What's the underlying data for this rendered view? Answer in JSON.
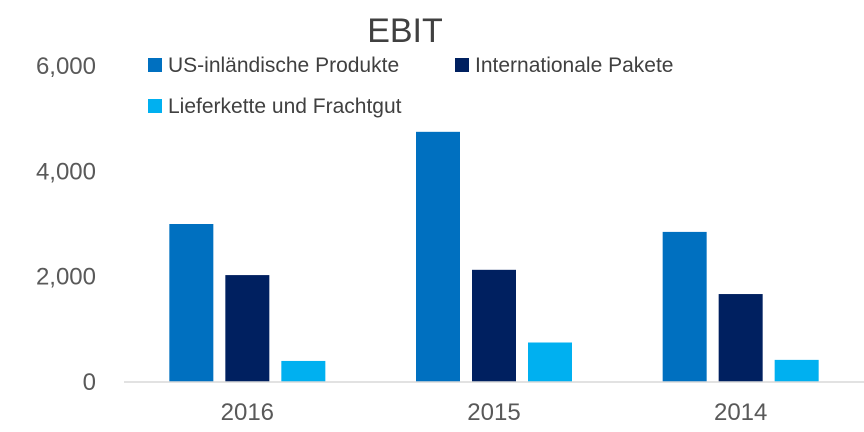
{
  "chart_data": {
    "type": "bar",
    "title": "EBIT",
    "xlabel": "",
    "ylabel": "",
    "categories": [
      "2016",
      "2015",
      "2014"
    ],
    "ylim": [
      0,
      6000
    ],
    "yticks": [
      0,
      2000,
      4000,
      6000
    ],
    "ytick_labels": [
      "0",
      "2,000",
      "4,000",
      "6,000"
    ],
    "grid": false,
    "legend_position": "top",
    "series": [
      {
        "name": "US-inländische Produkte",
        "color": "#0070C0",
        "values": [
          3000,
          4750,
          2850
        ]
      },
      {
        "name": "Internationale Pakete",
        "color": "#002060",
        "values": [
          2030,
          2130,
          1670
        ]
      },
      {
        "name": "Lieferkette und Frachtgut",
        "color": "#00B0F0",
        "values": [
          400,
          750,
          420
        ]
      }
    ]
  }
}
